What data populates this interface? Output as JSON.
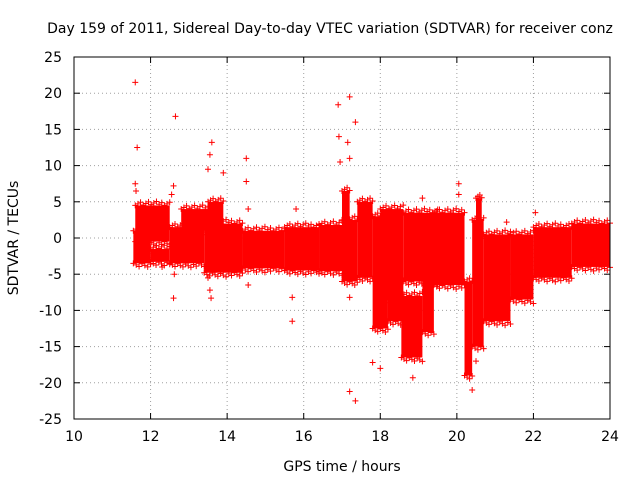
{
  "chart_data": {
    "type": "scatter",
    "title": "Day 159 of 2011, Sidereal Day-to-day VTEC variation (SDTVAR) for receiver conz",
    "xlabel": "GPS time / hours",
    "ylabel": "SDTVAR / TECUs",
    "xlim": [
      10,
      24
    ],
    "ylim": [
      -25,
      25
    ],
    "xticks": [
      10,
      12,
      14,
      16,
      18,
      20,
      22,
      24
    ],
    "yticks": [
      -25,
      -20,
      -15,
      -10,
      -5,
      0,
      5,
      10,
      15,
      20,
      25
    ],
    "grid": true,
    "marker": "+",
    "color": "#ff0000",
    "series": [
      {
        "name": "SDTVAR",
        "bands": [
          {
            "x0": 11.55,
            "x1": 12.0,
            "lo": -3.5,
            "hi": 1.0
          },
          {
            "x0": 11.6,
            "x1": 12.5,
            "lo": -0.5,
            "hi": 4.5
          },
          {
            "x0": 12.0,
            "x1": 12.5,
            "lo": -3.3,
            "hi": -1.5
          },
          {
            "x0": 12.5,
            "x1": 13.4,
            "lo": -3.5,
            "hi": 1.5
          },
          {
            "x0": 12.8,
            "x1": 13.5,
            "lo": 1.0,
            "hi": 4.0
          },
          {
            "x0": 13.4,
            "x1": 14.4,
            "lo": -4.8,
            "hi": 2.0
          },
          {
            "x0": 13.5,
            "x1": 13.9,
            "lo": 0.0,
            "hi": 5.0
          },
          {
            "x0": 14.4,
            "x1": 15.5,
            "lo": -4.2,
            "hi": 1.0
          },
          {
            "x0": 15.5,
            "x1": 16.4,
            "lo": -4.5,
            "hi": 1.5
          },
          {
            "x0": 16.4,
            "x1": 17.0,
            "lo": -4.6,
            "hi": 1.8
          },
          {
            "x0": 17.0,
            "x1": 17.4,
            "lo": -6.0,
            "hi": 2.5
          },
          {
            "x0": 17.0,
            "x1": 17.2,
            "lo": 0.0,
            "hi": 6.5
          },
          {
            "x0": 17.4,
            "x1": 17.8,
            "lo": -5.5,
            "hi": 5.0
          },
          {
            "x0": 17.8,
            "x1": 18.2,
            "lo": -12.5,
            "hi": 3.0
          },
          {
            "x0": 18.0,
            "x1": 18.6,
            "lo": -8.5,
            "hi": 4.0
          },
          {
            "x0": 18.2,
            "x1": 18.6,
            "lo": -11.5,
            "hi": -6.0
          },
          {
            "x0": 18.55,
            "x1": 19.1,
            "lo": -16.5,
            "hi": -8.0
          },
          {
            "x0": 18.6,
            "x1": 19.5,
            "lo": -6.0,
            "hi": 3.5
          },
          {
            "x0": 19.1,
            "x1": 19.4,
            "lo": -13.0,
            "hi": -5.5
          },
          {
            "x0": 19.4,
            "x1": 20.2,
            "lo": -6.5,
            "hi": 3.5
          },
          {
            "x0": 20.2,
            "x1": 20.4,
            "lo": -19.0,
            "hi": -6.0
          },
          {
            "x0": 20.4,
            "x1": 20.7,
            "lo": -15.0,
            "hi": 2.5
          },
          {
            "x0": 20.5,
            "x1": 20.65,
            "lo": 0.0,
            "hi": 5.5
          },
          {
            "x0": 20.7,
            "x1": 21.4,
            "lo": -11.5,
            "hi": 0.5
          },
          {
            "x0": 21.4,
            "x1": 22.0,
            "lo": -8.5,
            "hi": 0.5
          },
          {
            "x0": 22.0,
            "x1": 23.0,
            "lo": -5.5,
            "hi": 1.5
          },
          {
            "x0": 23.0,
            "x1": 24.0,
            "lo": -4.0,
            "hi": 2.0
          }
        ],
        "outliers": [
          [
            11.6,
            21.5
          ],
          [
            11.65,
            12.5
          ],
          [
            11.6,
            7.5
          ],
          [
            11.62,
            6.5
          ],
          [
            12.65,
            16.8
          ],
          [
            12.6,
            7.2
          ],
          [
            12.55,
            6.0
          ],
          [
            12.62,
            -5.0
          ],
          [
            12.6,
            -8.3
          ],
          [
            12.3,
            -4.0
          ],
          [
            13.6,
            13.2
          ],
          [
            13.55,
            11.5
          ],
          [
            13.5,
            9.5
          ],
          [
            13.5,
            -5.5
          ],
          [
            13.55,
            -7.2
          ],
          [
            13.58,
            -8.3
          ],
          [
            13.9,
            9.0
          ],
          [
            14.5,
            11.0
          ],
          [
            14.5,
            7.8
          ],
          [
            14.55,
            4.0
          ],
          [
            14.55,
            -6.5
          ],
          [
            15.8,
            4.0
          ],
          [
            15.7,
            -8.2
          ],
          [
            15.7,
            -11.5
          ],
          [
            16.9,
            18.4
          ],
          [
            16.92,
            14.0
          ],
          [
            16.95,
            10.5
          ],
          [
            17.2,
            19.5
          ],
          [
            17.35,
            16.0
          ],
          [
            17.15,
            13.2
          ],
          [
            17.2,
            11.0
          ],
          [
            17.2,
            -8.2
          ],
          [
            17.2,
            -21.2
          ],
          [
            17.35,
            -22.5
          ],
          [
            17.8,
            -17.2
          ],
          [
            18.0,
            -18.0
          ],
          [
            18.85,
            -19.3
          ],
          [
            19.1,
            5.5
          ],
          [
            20.05,
            7.5
          ],
          [
            20.05,
            3.3
          ],
          [
            20.05,
            6.0
          ],
          [
            20.4,
            -21.0
          ],
          [
            20.5,
            -17.0
          ],
          [
            21.3,
            2.2
          ],
          [
            22.05,
            3.5
          ],
          [
            23.3,
            1.5
          ]
        ]
      }
    ]
  }
}
